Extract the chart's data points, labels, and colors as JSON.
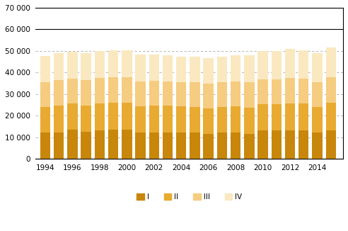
{
  "years": [
    1994,
    1995,
    1996,
    1997,
    1998,
    1999,
    2000,
    2001,
    2002,
    2003,
    2004,
    2005,
    2006,
    2007,
    2008,
    2009,
    2010,
    2011,
    2012,
    2013,
    2014,
    2015
  ],
  "Q1": [
    12200,
    12400,
    13600,
    12600,
    13200,
    13600,
    13600,
    12200,
    12400,
    12400,
    12400,
    12200,
    11600,
    12200,
    12200,
    11600,
    13200,
    13200,
    13400,
    13200,
    12400,
    13400
  ],
  "Q2": [
    11800,
    12200,
    12000,
    12200,
    12400,
    12400,
    12400,
    12200,
    12200,
    12200,
    12000,
    12000,
    11800,
    12000,
    12200,
    12200,
    12200,
    12200,
    12400,
    12400,
    11800,
    12600
  ],
  "Q3": [
    11600,
    11800,
    11600,
    11800,
    11800,
    11800,
    11800,
    11600,
    11600,
    11400,
    11200,
    11200,
    11400,
    11200,
    11400,
    11600,
    11400,
    11400,
    11600,
    11600,
    11400,
    11800
  ],
  "Q4": [
    12200,
    12600,
    12400,
    12400,
    12600,
    12600,
    12400,
    12200,
    12000,
    12000,
    11800,
    12000,
    11800,
    11800,
    12200,
    12600,
    13200,
    13200,
    13600,
    13200,
    13400,
    13800
  ],
  "colors": {
    "Q1": "#c8860a",
    "Q2": "#e8aa30",
    "Q3": "#f5cc80",
    "Q4": "#fae8c0"
  },
  "ylim": [
    0,
    70000
  ],
  "yticks": [
    0,
    10000,
    20000,
    30000,
    40000,
    50000,
    60000,
    70000
  ],
  "ytick_labels": [
    "0",
    "10 000",
    "20 000",
    "30 000",
    "40 000",
    "50 000",
    "60 000",
    "70 000"
  ],
  "xtick_labels": [
    "1994",
    "1996",
    "1998",
    "2000",
    "2002",
    "2004",
    "2006",
    "2008",
    "2010",
    "2012",
    "2014"
  ],
  "legend_labels": [
    "I",
    "II",
    "III",
    "IV"
  ],
  "grid_solid_lines": [
    0,
    60000
  ],
  "grid_dashed_lines": [
    10000,
    20000,
    30000,
    40000,
    50000
  ],
  "bar_width": 0.75,
  "xlim": [
    1993.3,
    2015.9
  ],
  "figsize": [
    4.92,
    3.26
  ],
  "dpi": 100
}
